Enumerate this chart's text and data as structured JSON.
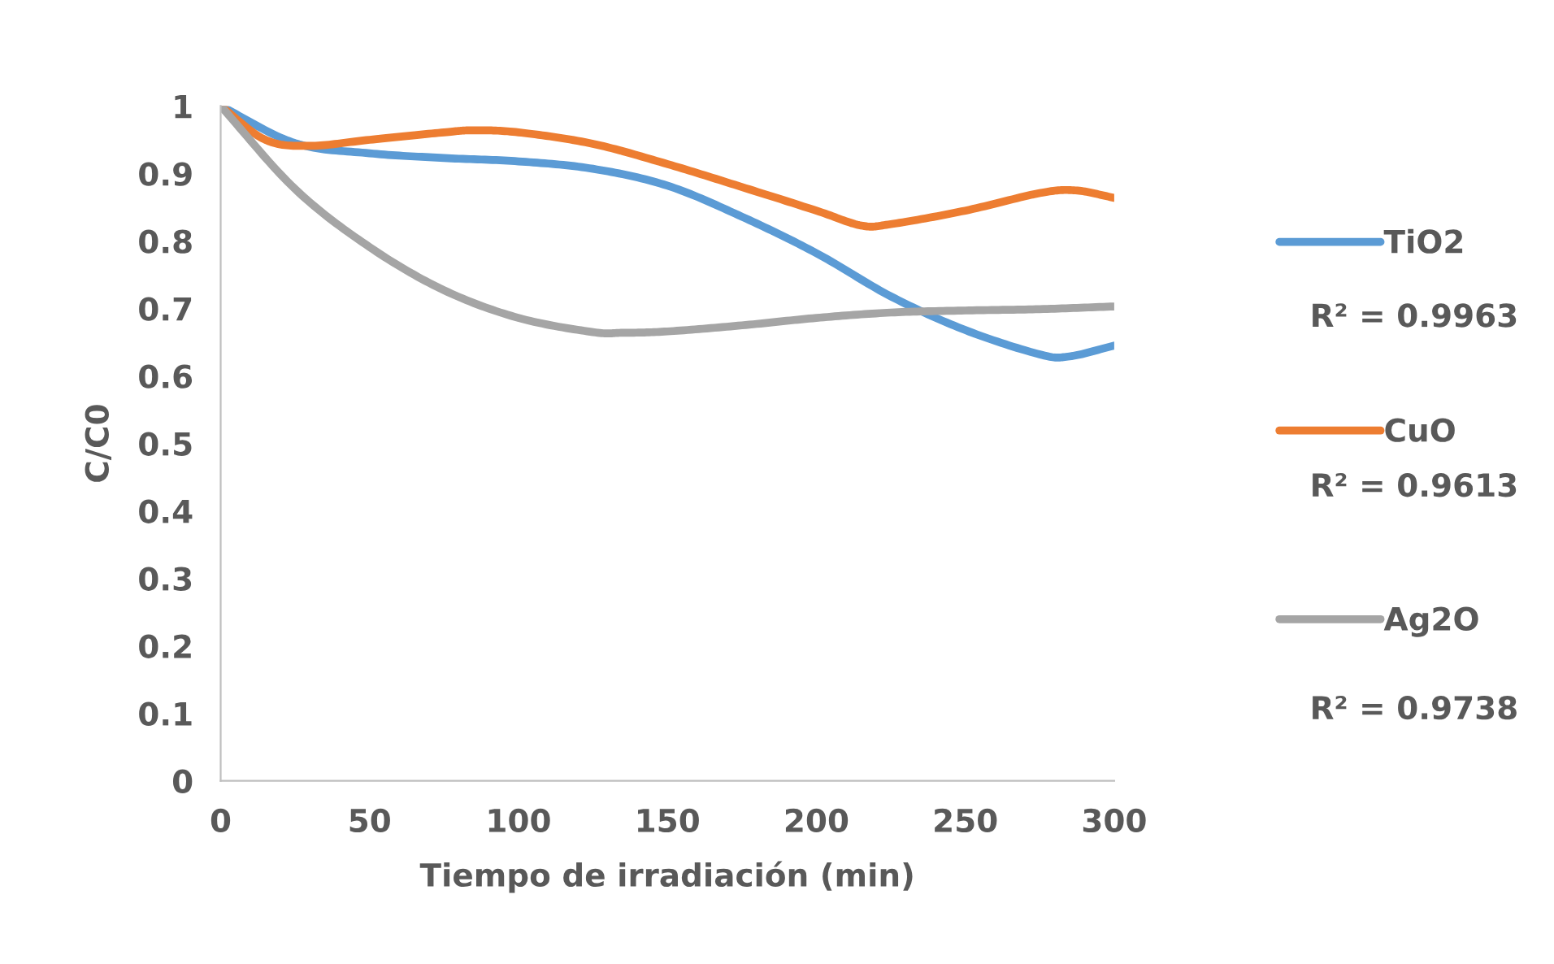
{
  "chart_data": {
    "type": "line",
    "xlabel": "Tiempo de irradiación (min)",
    "ylabel": "C/C0",
    "xlim": [
      0,
      300
    ],
    "xticks": [
      0,
      50,
      100,
      150,
      200,
      250,
      300
    ],
    "ylim": [
      0,
      1
    ],
    "yticks": [
      0,
      0.1,
      0.2,
      0.3,
      0.4,
      0.5,
      0.6,
      0.7,
      0.8,
      0.9,
      1
    ],
    "grid": false,
    "legend": "right",
    "marker": "none",
    "line_style": "solid",
    "annotations": [
      "R² = 0.9963",
      "R² = 0.9613",
      "R² = 0.9738"
    ],
    "series": [
      {
        "name": "TiO2",
        "color": "#5b9bd5",
        "x": [
          0,
          25,
          50,
          75,
          100,
          125,
          150,
          175,
          200,
          225,
          250,
          275,
          285,
          300
        ],
        "values": [
          1,
          0.945,
          0.93,
          0.923,
          0.918,
          0.907,
          0.882,
          0.836,
          0.782,
          0.718,
          0.668,
          0.632,
          0.629,
          0.645
        ]
      },
      {
        "name": "CuO",
        "color": "#ed7d31",
        "x": [
          0,
          15,
          30,
          50,
          75,
          85,
          100,
          125,
          150,
          175,
          200,
          215,
          225,
          250,
          275,
          287,
          300
        ],
        "values": [
          1,
          0.95,
          0.941,
          0.95,
          0.961,
          0.964,
          0.961,
          0.944,
          0.914,
          0.88,
          0.845,
          0.823,
          0.825,
          0.845,
          0.871,
          0.875,
          0.864
        ]
      },
      {
        "name": "Ag2O",
        "color": "#a5a5a5",
        "x": [
          0,
          25,
          50,
          75,
          100,
          125,
          135,
          150,
          175,
          200,
          225,
          250,
          275,
          300
        ],
        "values": [
          1,
          0.877,
          0.791,
          0.727,
          0.686,
          0.665,
          0.664,
          0.666,
          0.675,
          0.686,
          0.694,
          0.697,
          0.699,
          0.703
        ]
      }
    ]
  }
}
